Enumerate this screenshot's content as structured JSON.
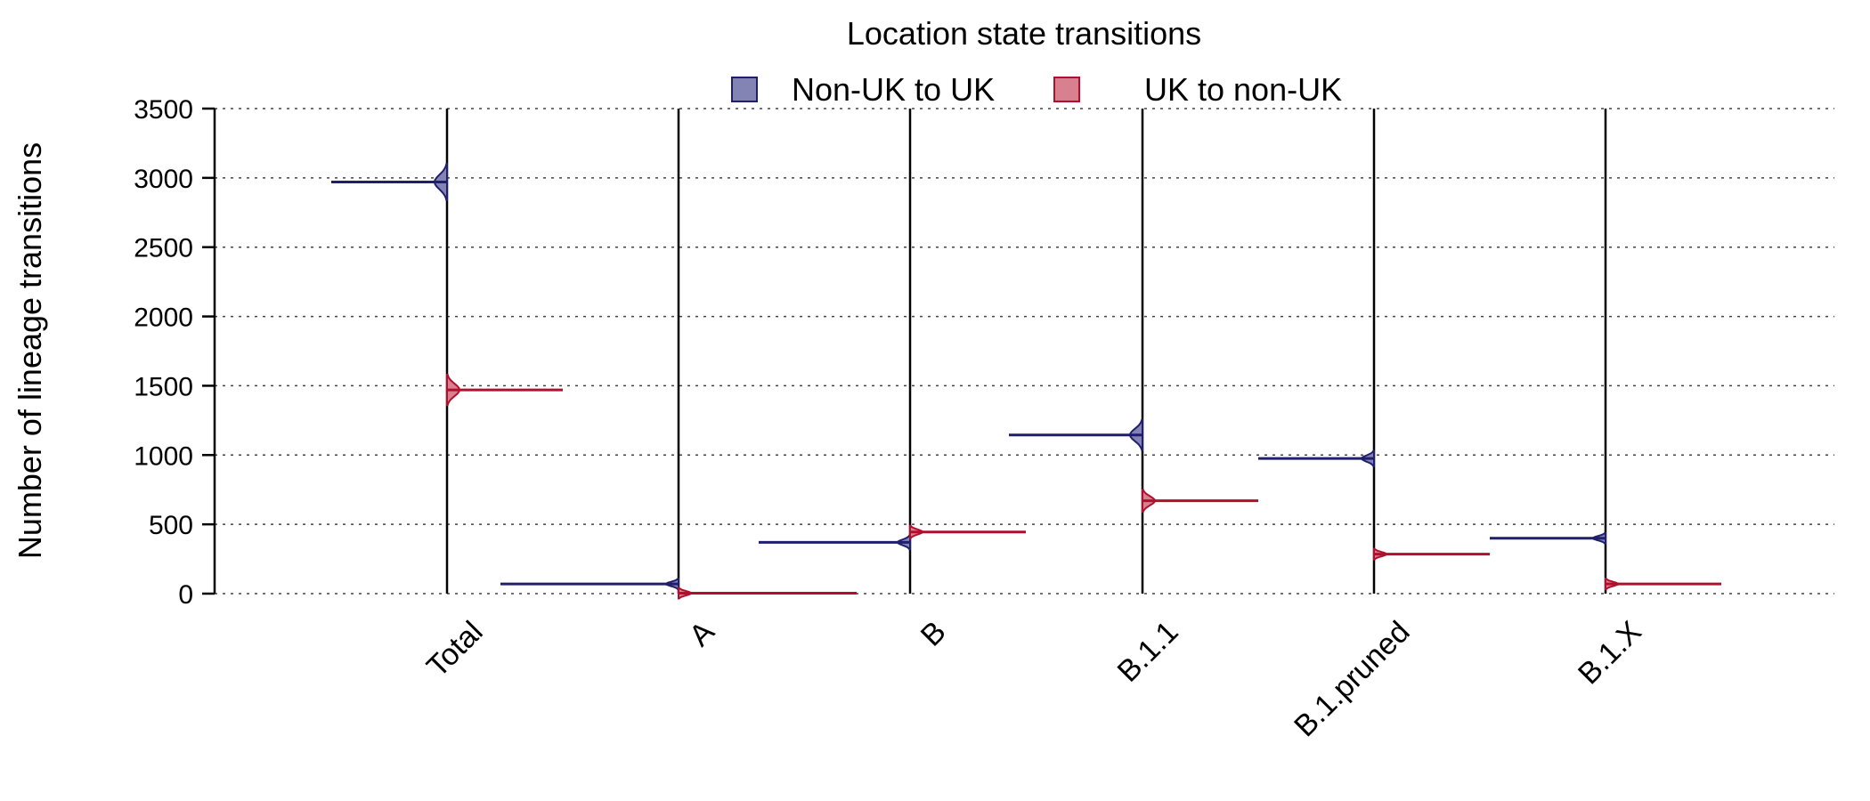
{
  "chart_data": {
    "type": "violin",
    "title": "Location state transitions",
    "xlabel": "",
    "ylabel": "Number of lineage transitions",
    "ylim": [
      0,
      3500
    ],
    "yticks": [
      0,
      500,
      1000,
      1500,
      2000,
      2500,
      3000,
      3500
    ],
    "grid": "horizontal-dotted",
    "legend_position": "top",
    "categories": [
      "Total",
      "A",
      "B",
      "B.1.1",
      "B.1.pruned",
      "B.1.X"
    ],
    "series": [
      {
        "name": "Non-UK to UK",
        "color": "#1f1f6e",
        "fill": "#8484b4",
        "side": "left",
        "values": [
          2970,
          70,
          370,
          1145,
          975,
          400
        ],
        "spread": [
          130,
          10,
          50,
          110,
          55,
          25
        ],
        "width": [
          130,
          200,
          170,
          150,
          130,
          130
        ]
      },
      {
        "name": "UK to non-UK",
        "color": "#b0102e",
        "fill": "#d98090",
        "side": "right",
        "values": [
          1470,
          3,
          445,
          670,
          285,
          70
        ],
        "spread": [
          110,
          6,
          45,
          80,
          35,
          20
        ],
        "width": [
          130,
          200,
          130,
          130,
          130,
          130
        ]
      }
    ]
  }
}
